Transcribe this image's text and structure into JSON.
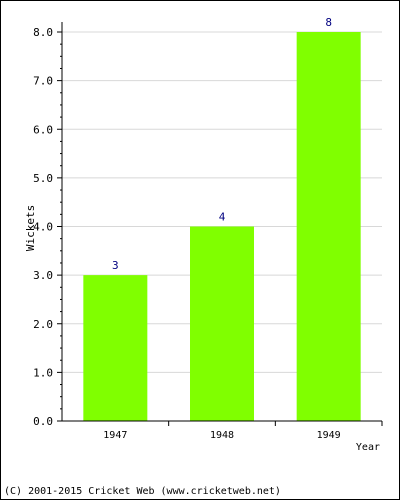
{
  "chart_data": {
    "type": "bar",
    "categories": [
      "1947",
      "1948",
      "1949"
    ],
    "values": [
      3,
      4,
      8
    ],
    "data_labels": [
      "3",
      "4",
      "8"
    ],
    "title": "",
    "xlabel": "Year",
    "ylabel": "Wickets",
    "ylim": [
      0,
      8
    ],
    "yticks": [
      "0.0",
      "1.0",
      "2.0",
      "3.0",
      "4.0",
      "5.0",
      "6.0",
      "7.0",
      "8.0"
    ],
    "grid": true,
    "bar_color": "#80ff00",
    "label_color": "#000080"
  },
  "footer": {
    "copyright": "(C) 2001-2015 Cricket Web (www.cricketweb.net)"
  }
}
